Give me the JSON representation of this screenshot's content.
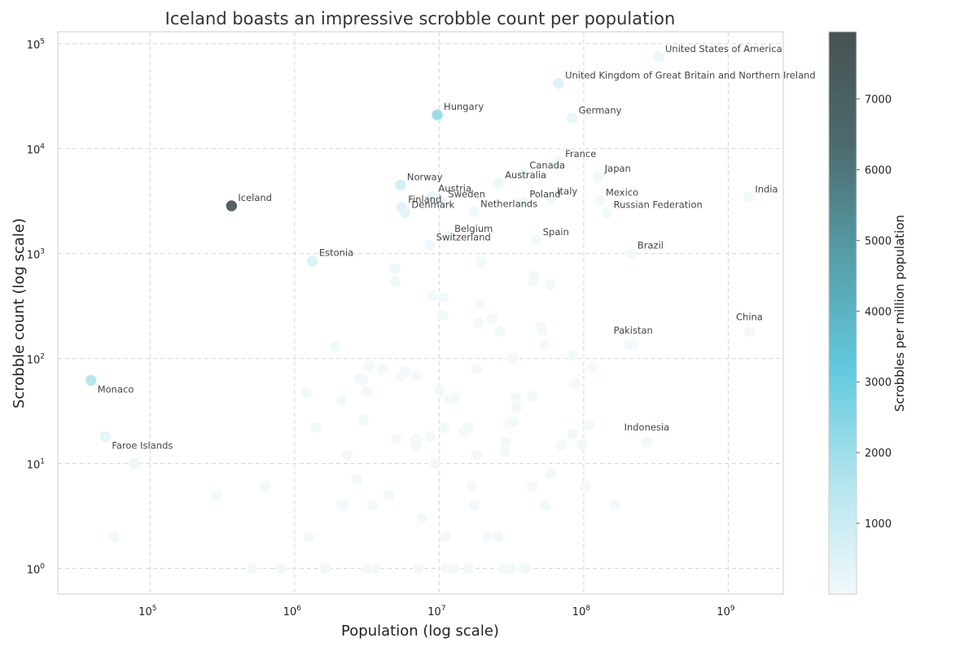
{
  "chart_data": {
    "type": "scatter",
    "title": "Iceland boasts an impressive scrobble count per population",
    "xlabel": "Population (log scale)",
    "ylabel": "Scrobble count (log scale)",
    "x_scale": "log",
    "y_scale": "log",
    "xlim": [
      23000,
      2400000000
    ],
    "ylim": [
      0.57,
      130000
    ],
    "x_ticks": [
      {
        "base": "10",
        "exp": "5",
        "value": 100000
      },
      {
        "base": "10",
        "exp": "6",
        "value": 1000000
      },
      {
        "base": "10",
        "exp": "7",
        "value": 10000000
      },
      {
        "base": "10",
        "exp": "8",
        "value": 100000000
      },
      {
        "base": "10",
        "exp": "9",
        "value": 1000000000
      }
    ],
    "y_ticks": [
      {
        "base": "10",
        "exp": "0",
        "value": 1
      },
      {
        "base": "10",
        "exp": "1",
        "value": 10
      },
      {
        "base": "10",
        "exp": "2",
        "value": 100
      },
      {
        "base": "10",
        "exp": "3",
        "value": 1000
      },
      {
        "base": "10",
        "exp": "4",
        "value": 10000
      },
      {
        "base": "10",
        "exp": "5",
        "value": 100000
      }
    ],
    "grid": true,
    "colorbar": {
      "label": "Scrobbles per million population",
      "range": [
        0,
        7950
      ],
      "ticks": [
        1000,
        2000,
        3000,
        4000,
        5000,
        6000,
        7000
      ],
      "colors": [
        "#f2f9fb",
        "#b2e4ee",
        "#62c9de",
        "#559ea8",
        "#4c6a6d",
        "#465252"
      ]
    },
    "points": [
      {
        "label": "United States of America",
        "x": 330000000,
        "y": 75000,
        "c": 227,
        "label_color": "#444444"
      },
      {
        "label": "United Kingdom of Great Britain and Northern Ireland",
        "x": 67000000,
        "y": 42000,
        "c": 627,
        "label_color": "#444444"
      },
      {
        "label": "Hungary",
        "x": 9700000,
        "y": 21000,
        "c": 2165,
        "label_color": "#444444"
      },
      {
        "label": "Germany",
        "x": 83000000,
        "y": 19500,
        "c": 235,
        "label_color": "#444444"
      },
      {
        "label": "France",
        "x": 67000000,
        "y": 7500,
        "c": 112,
        "label_color": "#444444"
      },
      {
        "label": "Canada",
        "x": 38000000,
        "y": 5800,
        "c": 153,
        "label_color": "#444444"
      },
      {
        "label": "Japan",
        "x": 126000000,
        "y": 5400,
        "c": 43,
        "label_color": "#444444"
      },
      {
        "label": "Australia",
        "x": 25700000,
        "y": 4700,
        "c": 183,
        "label_color": "#444444"
      },
      {
        "label": "Norway",
        "x": 5400000,
        "y": 4500,
        "c": 833,
        "label_color": "#444444"
      },
      {
        "label": "Austria",
        "x": 8900000,
        "y": 3500,
        "c": 393,
        "label_color": "#444444"
      },
      {
        "label": "Italy",
        "x": 59000000,
        "y": 3300,
        "c": 56,
        "label_color": "#444444"
      },
      {
        "label": "Sweden",
        "x": 10400000,
        "y": 3100,
        "c": 298,
        "label_color": "#444444"
      },
      {
        "label": "Poland",
        "x": 38000000,
        "y": 3100,
        "c": 82,
        "label_color": "#444444"
      },
      {
        "label": "Mexico",
        "x": 128000000,
        "y": 3200,
        "c": 25,
        "label_color": "#444444"
      },
      {
        "label": "India",
        "x": 1380000000,
        "y": 3450,
        "c": 3,
        "label_color": "#444444"
      },
      {
        "label": "Iceland",
        "x": 366000,
        "y": 2850,
        "c": 7787,
        "label_color": "#444444"
      },
      {
        "label": "Finland",
        "x": 5500000,
        "y": 2750,
        "c": 500,
        "label_color": "#444444"
      },
      {
        "label": "Netherlands",
        "x": 17400000,
        "y": 2500,
        "c": 144,
        "label_color": "#444444"
      },
      {
        "label": "Denmark",
        "x": 5800000,
        "y": 2450,
        "c": 422,
        "label_color": "#444444"
      },
      {
        "label": "Russian Federation",
        "x": 145000000,
        "y": 2450,
        "c": 17,
        "label_color": "#444444"
      },
      {
        "label": "Belgium",
        "x": 11500000,
        "y": 1450,
        "c": 126,
        "label_color": "#444444"
      },
      {
        "label": "Spain",
        "x": 47000000,
        "y": 1350,
        "c": 29,
        "label_color": "#444444"
      },
      {
        "label": "Switzerland",
        "x": 8600000,
        "y": 1200,
        "c": 140,
        "label_color": "#444444"
      },
      {
        "label": "Brazil",
        "x": 212000000,
        "y": 1000,
        "c": 5,
        "label_color": "#444444"
      },
      {
        "label": "Estonia",
        "x": 1330000,
        "y": 850,
        "c": 639,
        "label_color": "#444444"
      },
      {
        "label": "China",
        "x": 1400000000,
        "y": 180,
        "c": 0.1,
        "label_color": "#2e2e8a"
      },
      {
        "label": "Pakistan",
        "x": 220000000,
        "y": 135,
        "c": 0.6,
        "label_color": "#2e2e8a"
      },
      {
        "label": "Monaco",
        "x": 39000,
        "y": 62,
        "c": 1590,
        "label_color": "#2e7d32"
      },
      {
        "label": "Indonesia",
        "x": 273000000,
        "y": 16,
        "c": 0.06,
        "label_color": "#2e2e8a"
      },
      {
        "label": "Faroe Islands",
        "x": 49000,
        "y": 18,
        "c": 367,
        "label_color": "#2e7d32"
      },
      {
        "label": "",
        "x": 78000,
        "y": 10,
        "c": 128
      },
      {
        "label": "",
        "x": 56000,
        "y": 2,
        "c": 36
      },
      {
        "label": "",
        "x": 290000,
        "y": 5,
        "c": 17
      },
      {
        "label": "",
        "x": 620000,
        "y": 6,
        "c": 10
      },
      {
        "label": "",
        "x": 510000,
        "y": 1,
        "c": 2
      },
      {
        "label": "",
        "x": 800000,
        "y": 1,
        "c": 1
      },
      {
        "label": "",
        "x": 1200000,
        "y": 47,
        "c": 39
      },
      {
        "label": "",
        "x": 1260000,
        "y": 2,
        "c": 2
      },
      {
        "label": "",
        "x": 1400000,
        "y": 22,
        "c": 16
      },
      {
        "label": "",
        "x": 1630000,
        "y": 1,
        "c": 1
      },
      {
        "label": "",
        "x": 1900000,
        "y": 130,
        "c": 68
      },
      {
        "label": "",
        "x": 2100000,
        "y": 4,
        "c": 2
      },
      {
        "label": "",
        "x": 2100000,
        "y": 40,
        "c": 19
      },
      {
        "label": "",
        "x": 2200000,
        "y": 4,
        "c": 2
      },
      {
        "label": "",
        "x": 2300000,
        "y": 12,
        "c": 5
      },
      {
        "label": "",
        "x": 2700000,
        "y": 7,
        "c": 3
      },
      {
        "label": "",
        "x": 2800000,
        "y": 64,
        "c": 23
      },
      {
        "label": "",
        "x": 2950000,
        "y": 62,
        "c": 21
      },
      {
        "label": "",
        "x": 3000000,
        "y": 26,
        "c": 9
      },
      {
        "label": "",
        "x": 3200000,
        "y": 1,
        "c": 0.3
      },
      {
        "label": "",
        "x": 3150000,
        "y": 48,
        "c": 15
      },
      {
        "label": "",
        "x": 3300000,
        "y": 85,
        "c": 26
      },
      {
        "label": "",
        "x": 3450000,
        "y": 4,
        "c": 1
      },
      {
        "label": "",
        "x": 3650000,
        "y": 1,
        "c": 0.3
      },
      {
        "label": "",
        "x": 4050000,
        "y": 80,
        "c": 20
      },
      {
        "label": "",
        "x": 4500000,
        "y": 5,
        "c": 1
      },
      {
        "label": "",
        "x": 4950000,
        "y": 540,
        "c": 109
      },
      {
        "label": "",
        "x": 4950000,
        "y": 720,
        "c": 145
      },
      {
        "label": "",
        "x": 5050000,
        "y": 17,
        "c": 3
      },
      {
        "label": "",
        "x": 5450000,
        "y": 68,
        "c": 12
      },
      {
        "label": "",
        "x": 5800000,
        "y": 75,
        "c": 13
      },
      {
        "label": "",
        "x": 6900000,
        "y": 17,
        "c": 2
      },
      {
        "label": "",
        "x": 6950000,
        "y": 15,
        "c": 2
      },
      {
        "label": "",
        "x": 7000000,
        "y": 69,
        "c": 10
      },
      {
        "label": "",
        "x": 7200000,
        "y": 1,
        "c": 0.1
      },
      {
        "label": "",
        "x": 7600000,
        "y": 3,
        "c": 0.4
      },
      {
        "label": "",
        "x": 8700000,
        "y": 18,
        "c": 2
      },
      {
        "label": "",
        "x": 9000000,
        "y": 400,
        "c": 44
      },
      {
        "label": "",
        "x": 9400000,
        "y": 10,
        "c": 1
      },
      {
        "label": "",
        "x": 10100000,
        "y": 49,
        "c": 5
      },
      {
        "label": "",
        "x": 10600000,
        "y": 260,
        "c": 25
      },
      {
        "label": "",
        "x": 10700000,
        "y": 380,
        "c": 36
      },
      {
        "label": "",
        "x": 11000000,
        "y": 22,
        "c": 2
      },
      {
        "label": "",
        "x": 11000000,
        "y": 2,
        "c": 0.2
      },
      {
        "label": "",
        "x": 11200000,
        "y": 1,
        "c": 0.1
      },
      {
        "label": "",
        "x": 11800000,
        "y": 41,
        "c": 3
      },
      {
        "label": "",
        "x": 12300000,
        "y": 1,
        "c": 0.1
      },
      {
        "label": "",
        "x": 12800000,
        "y": 42,
        "c": 3
      },
      {
        "label": "",
        "x": 12700000,
        "y": 1,
        "c": 0.1
      },
      {
        "label": "",
        "x": 14700000,
        "y": 20,
        "c": 1
      },
      {
        "label": "",
        "x": 15900000,
        "y": 22,
        "c": 1
      },
      {
        "label": "",
        "x": 16000000,
        "y": 1,
        "c": 0.1
      },
      {
        "label": "",
        "x": 16800000,
        "y": 6,
        "c": 0.4
      },
      {
        "label": "",
        "x": 17500000,
        "y": 4,
        "c": 0.2
      },
      {
        "label": "",
        "x": 18200000,
        "y": 12,
        "c": 0.7
      },
      {
        "label": "",
        "x": 18200000,
        "y": 80,
        "c": 4
      },
      {
        "label": "",
        "x": 18700000,
        "y": 220,
        "c": 12
      },
      {
        "label": "",
        "x": 19200000,
        "y": 330,
        "c": 17
      },
      {
        "label": "",
        "x": 19500000,
        "y": 830,
        "c": 43
      },
      {
        "label": "",
        "x": 21500000,
        "y": 2,
        "c": 0.1
      },
      {
        "label": "",
        "x": 23300000,
        "y": 240,
        "c": 10
      },
      {
        "label": "",
        "x": 25600000,
        "y": 2,
        "c": 0.1
      },
      {
        "label": "",
        "x": 26400000,
        "y": 180,
        "c": 7
      },
      {
        "label": "",
        "x": 27600000,
        "y": 1,
        "c": 0.04
      },
      {
        "label": "",
        "x": 28600000,
        "y": 13,
        "c": 0.5
      },
      {
        "label": "",
        "x": 28900000,
        "y": 16,
        "c": 0.6
      },
      {
        "label": "",
        "x": 29800000,
        "y": 1,
        "c": 0.03
      },
      {
        "label": "",
        "x": 30800000,
        "y": 24,
        "c": 0.8
      },
      {
        "label": "",
        "x": 31400000,
        "y": 1,
        "c": 0.03
      },
      {
        "label": "",
        "x": 32400000,
        "y": 25,
        "c": 0.8
      },
      {
        "label": "",
        "x": 32400000,
        "y": 100,
        "c": 3
      },
      {
        "label": "",
        "x": 33800000,
        "y": 42,
        "c": 1
      },
      {
        "label": "",
        "x": 34200000,
        "y": 34,
        "c": 1
      },
      {
        "label": "",
        "x": 38200000,
        "y": 1,
        "c": 0.03
      },
      {
        "label": "",
        "x": 40000000,
        "y": 1,
        "c": 0.03
      },
      {
        "label": "",
        "x": 43800000,
        "y": 44,
        "c": 1
      },
      {
        "label": "",
        "x": 44100000,
        "y": 6,
        "c": 0.1
      },
      {
        "label": "",
        "x": 44800000,
        "y": 540,
        "c": 12
      },
      {
        "label": "",
        "x": 45100000,
        "y": 610,
        "c": 14
      },
      {
        "label": "",
        "x": 50900000,
        "y": 200,
        "c": 4
      },
      {
        "label": "",
        "x": 51800000,
        "y": 185,
        "c": 4
      },
      {
        "label": "",
        "x": 53700000,
        "y": 135,
        "c": 3
      },
      {
        "label": "",
        "x": 54400000,
        "y": 4,
        "c": 0.1
      },
      {
        "label": "",
        "x": 58600000,
        "y": 500,
        "c": 9
      },
      {
        "label": "",
        "x": 59300000,
        "y": 8,
        "c": 0.1
      },
      {
        "label": "",
        "x": 69800000,
        "y": 15,
        "c": 0.2
      },
      {
        "label": "",
        "x": 83900000,
        "y": 19,
        "c": 0.2
      },
      {
        "label": "",
        "x": 84300000,
        "y": 108,
        "c": 1
      },
      {
        "label": "",
        "x": 87000000,
        "y": 58,
        "c": 0.7
      },
      {
        "label": "",
        "x": 97300000,
        "y": 15,
        "c": 0.2
      },
      {
        "label": "",
        "x": 102300000,
        "y": 6,
        "c": 0.1
      },
      {
        "label": "",
        "x": 109600000,
        "y": 23,
        "c": 0.2
      },
      {
        "label": "",
        "x": 114900000,
        "y": 84,
        "c": 0.7
      },
      {
        "label": "",
        "x": 164700000,
        "y": 4,
        "c": 0.02
      },
      {
        "label": "",
        "x": 206100000,
        "y": 135,
        "c": 0.7
      }
    ]
  }
}
